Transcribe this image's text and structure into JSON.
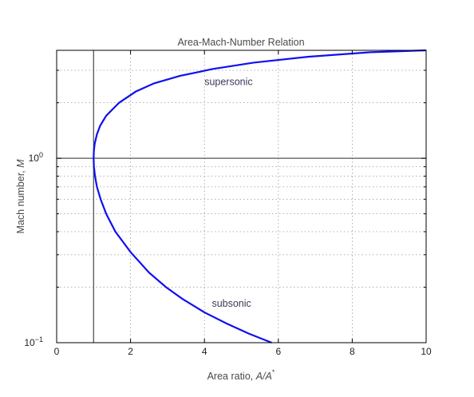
{
  "chart_data": {
    "type": "line",
    "title": "Area-Mach-Number Relation",
    "xlabel_text": "Area ratio, ",
    "xlabel_math": "A/A",
    "xlabel_sup": "*",
    "ylabel_text": "Mach number, ",
    "ylabel_math": "M",
    "xlim": [
      0,
      10
    ],
    "ylim": [
      0.1,
      3.85
    ],
    "yscale": "log",
    "grid": true,
    "x_ticks": [
      {
        "value": 0,
        "label": "0"
      },
      {
        "value": 2,
        "label": "2"
      },
      {
        "value": 4,
        "label": "4"
      },
      {
        "value": 6,
        "label": "6"
      },
      {
        "value": 8,
        "label": "8"
      },
      {
        "value": 10,
        "label": "10"
      }
    ],
    "y_ticks": [
      {
        "value": 0.1,
        "base": "10",
        "exp": "−1"
      },
      {
        "value": 1,
        "base": "10",
        "exp": "0"
      }
    ],
    "y_minor_ticks": [
      0.2,
      0.3,
      0.4,
      0.5,
      0.6,
      0.7,
      0.8,
      0.9,
      2,
      3
    ],
    "reference_lines": {
      "vertical_x": 1,
      "horizontal_y": 1
    },
    "series": [
      {
        "color": "#1010ee",
        "points": [
          [
            5.82,
            0.1
          ],
          [
            5.2,
            0.112
          ],
          [
            4.6,
            0.127
          ],
          [
            4.0,
            0.146
          ],
          [
            3.4,
            0.173
          ],
          [
            2.96,
            0.2
          ],
          [
            2.5,
            0.24
          ],
          [
            2.0,
            0.31
          ],
          [
            1.59,
            0.4
          ],
          [
            1.34,
            0.5
          ],
          [
            1.19,
            0.6
          ],
          [
            1.09,
            0.7
          ],
          [
            1.038,
            0.8
          ],
          [
            1.009,
            0.9
          ],
          [
            1.0,
            1.0
          ],
          [
            1.008,
            1.1
          ],
          [
            1.03,
            1.2
          ],
          [
            1.09,
            1.35
          ],
          [
            1.176,
            1.5
          ],
          [
            1.34,
            1.7
          ],
          [
            1.69,
            2.0
          ],
          [
            2.14,
            2.3
          ],
          [
            2.64,
            2.55
          ],
          [
            3.34,
            2.8
          ],
          [
            4.23,
            3.05
          ],
          [
            5.33,
            3.3
          ],
          [
            6.79,
            3.55
          ],
          [
            8.49,
            3.76
          ],
          [
            10.0,
            3.85
          ]
        ]
      }
    ],
    "annotations": [
      {
        "text": "supersonic",
        "x": 4.0,
        "y": 2.5
      },
      {
        "text": "subsonic",
        "x": 4.2,
        "y": 0.157
      }
    ]
  }
}
